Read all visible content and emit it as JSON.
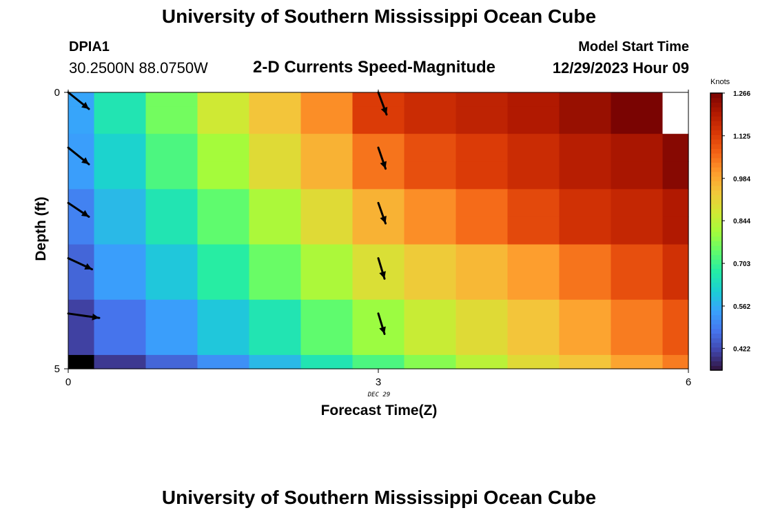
{
  "header": {
    "title": "University of Southern Mississippi Ocean Cube",
    "station_id": "DPIA1",
    "coordinates": "30.2500N  88.0750W",
    "subtitle": "2-D Currents Speed-Magnitude",
    "model_start_label": "Model Start Time",
    "model_start_value": "12/29/2023 Hour 09"
  },
  "footer": {
    "title": "University of Southern Mississippi Ocean Cube"
  },
  "chart_data": {
    "type": "heatmap",
    "title": "2-D Currents Speed-Magnitude",
    "xlabel": "Forecast Time(Z)",
    "ylabel": "Depth (ft)",
    "x_tick_labels": [
      "0",
      "3",
      "6"
    ],
    "y_tick_labels": [
      "0",
      "5"
    ],
    "x_date_label": "DEC 29",
    "xlim": [
      0,
      6
    ],
    "ylim": [
      0,
      5
    ],
    "y_axis_inverted": true,
    "units": "Knots",
    "colorbar_ticks": [
      "1.266",
      "1.125",
      "0.984",
      "0.844",
      "0.703",
      "0.562",
      "0.422"
    ],
    "colorbar_range": [
      0.35,
      1.266
    ],
    "colormap": [
      "#30123b",
      "#4145ab",
      "#4675ed",
      "#39a2fc",
      "#1bcfd4",
      "#24eca6",
      "#61fc6c",
      "#a4fc3b",
      "#d1e834",
      "#f3c63a",
      "#fe9b2d",
      "#f36315",
      "#d93806",
      "#b11901",
      "#7a0402"
    ],
    "x_edges": [
      0,
      0.25,
      0.75,
      1.25,
      1.75,
      2.25,
      2.75,
      3.25,
      3.75,
      4.25,
      4.75,
      5.25,
      5.75,
      6
    ],
    "y_edges": [
      0,
      0.25,
      0.75,
      1.25,
      1.75,
      2.25,
      2.75,
      3.25,
      3.75,
      4.25,
      4.75,
      5
    ],
    "values": [
      [
        0.55,
        0.66,
        0.76,
        0.87,
        0.94,
        1.02,
        1.13,
        1.16,
        1.18,
        1.2,
        1.23,
        1.266,
        null
      ],
      [
        0.55,
        0.66,
        0.76,
        0.87,
        0.94,
        1.02,
        1.13,
        1.16,
        1.18,
        1.2,
        1.23,
        1.266,
        null
      ],
      [
        0.54,
        0.62,
        0.72,
        0.81,
        0.9,
        0.97,
        1.05,
        1.1,
        1.13,
        1.16,
        1.19,
        1.21,
        1.25
      ],
      [
        0.54,
        0.62,
        0.72,
        0.81,
        0.9,
        0.97,
        1.05,
        1.1,
        1.13,
        1.16,
        1.19,
        1.21,
        1.25
      ],
      [
        0.5,
        0.58,
        0.66,
        0.74,
        0.82,
        0.9,
        0.97,
        1.02,
        1.06,
        1.11,
        1.15,
        1.17,
        1.2
      ],
      [
        0.5,
        0.58,
        0.66,
        0.74,
        0.82,
        0.9,
        0.97,
        1.02,
        1.06,
        1.11,
        1.15,
        1.17,
        1.2
      ],
      [
        0.46,
        0.54,
        0.6,
        0.68,
        0.75,
        0.82,
        0.89,
        0.93,
        0.96,
        1.0,
        1.05,
        1.1,
        1.15
      ],
      [
        0.46,
        0.54,
        0.6,
        0.68,
        0.75,
        0.82,
        0.89,
        0.93,
        0.96,
        1.0,
        1.05,
        1.1,
        1.15
      ],
      [
        0.41,
        0.48,
        0.54,
        0.6,
        0.66,
        0.74,
        0.8,
        0.86,
        0.9,
        0.94,
        0.99,
        1.04,
        1.09
      ],
      [
        0.41,
        0.48,
        0.54,
        0.6,
        0.66,
        0.74,
        0.8,
        0.86,
        0.9,
        0.94,
        0.99,
        1.04,
        1.09
      ],
      [
        0.3,
        0.4,
        0.46,
        0.52,
        0.58,
        0.66,
        0.72,
        0.78,
        0.84,
        0.9,
        0.94,
        0.99,
        1.04
      ]
    ],
    "null_colors": {
      "0-12": "#ffffff",
      "1-12": "#ffffff",
      "10-0": "#000000"
    },
    "vectors": [
      {
        "x": 0,
        "y": 0,
        "dx": 0.2,
        "dy": 0.3
      },
      {
        "x": 0,
        "y": 1,
        "dx": 0.2,
        "dy": 0.3
      },
      {
        "x": 0,
        "y": 2,
        "dx": 0.2,
        "dy": 0.25
      },
      {
        "x": 0,
        "y": 3,
        "dx": 0.23,
        "dy": 0.2
      },
      {
        "x": 0,
        "y": 4,
        "dx": 0.3,
        "dy": 0.08
      },
      {
        "x": 3,
        "y": 0,
        "dx": 0.08,
        "dy": 0.4
      },
      {
        "x": 3,
        "y": 1,
        "dx": 0.07,
        "dy": 0.38
      },
      {
        "x": 3,
        "y": 2,
        "dx": 0.07,
        "dy": 0.37
      },
      {
        "x": 3,
        "y": 3,
        "dx": 0.06,
        "dy": 0.37
      },
      {
        "x": 3,
        "y": 4,
        "dx": 0.06,
        "dy": 0.37
      }
    ]
  }
}
